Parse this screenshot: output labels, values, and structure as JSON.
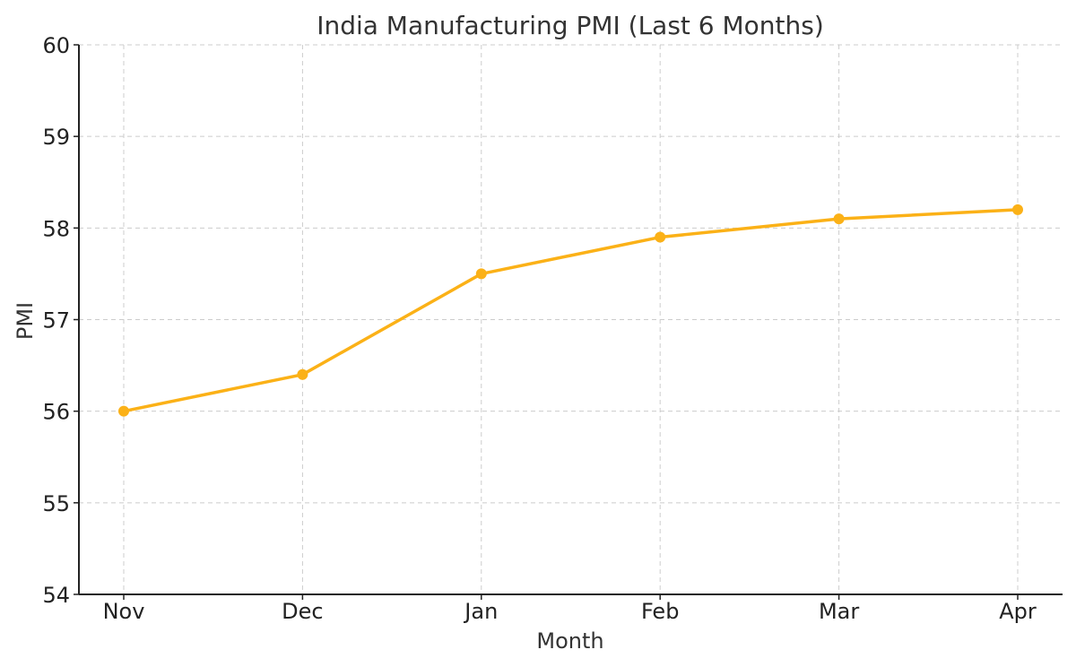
{
  "chart_data": {
    "type": "line",
    "title": "India Manufacturing PMI (Last 6 Months)",
    "xlabel": "Month",
    "ylabel": "PMI",
    "categories": [
      "Nov",
      "Dec",
      "Jan",
      "Feb",
      "Mar",
      "Apr"
    ],
    "series": [
      {
        "name": "PMI",
        "values": [
          56.0,
          56.4,
          57.5,
          57.9,
          58.1,
          58.2
        ],
        "color": "#FBB117",
        "marker": "circle"
      }
    ],
    "ylim": [
      54,
      60
    ],
    "yticks": [
      54,
      55,
      56,
      57,
      58,
      59,
      60
    ],
    "grid": true,
    "legend": "none"
  }
}
